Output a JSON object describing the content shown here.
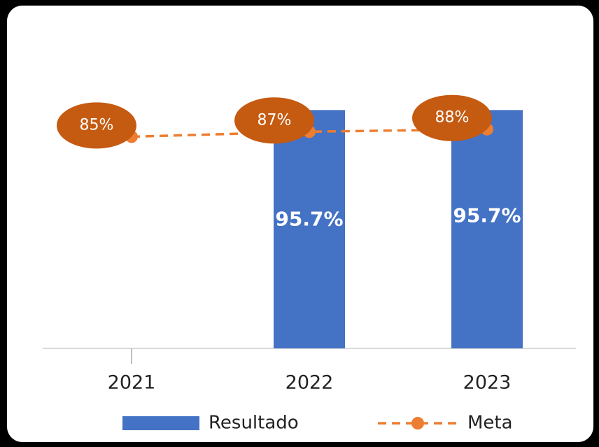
{
  "chart_data": {
    "type": "bar-line",
    "categories": [
      "2021",
      "2022",
      "2023"
    ],
    "series": [
      {
        "name": "Resultado",
        "type": "bar",
        "color": "#4472c4",
        "values": [
          null,
          95.7,
          95.7
        ],
        "value_labels": [
          null,
          "95.7%",
          "95.7%"
        ]
      },
      {
        "name": "Meta",
        "type": "line",
        "color": "#ed7d31",
        "label_color": "#c55a11",
        "dashed": true,
        "values": [
          85,
          87,
          88
        ],
        "value_labels": [
          "85%",
          "87%",
          "88%"
        ]
      }
    ],
    "ylim": [
      0,
      100
    ],
    "legend": "bottom"
  }
}
